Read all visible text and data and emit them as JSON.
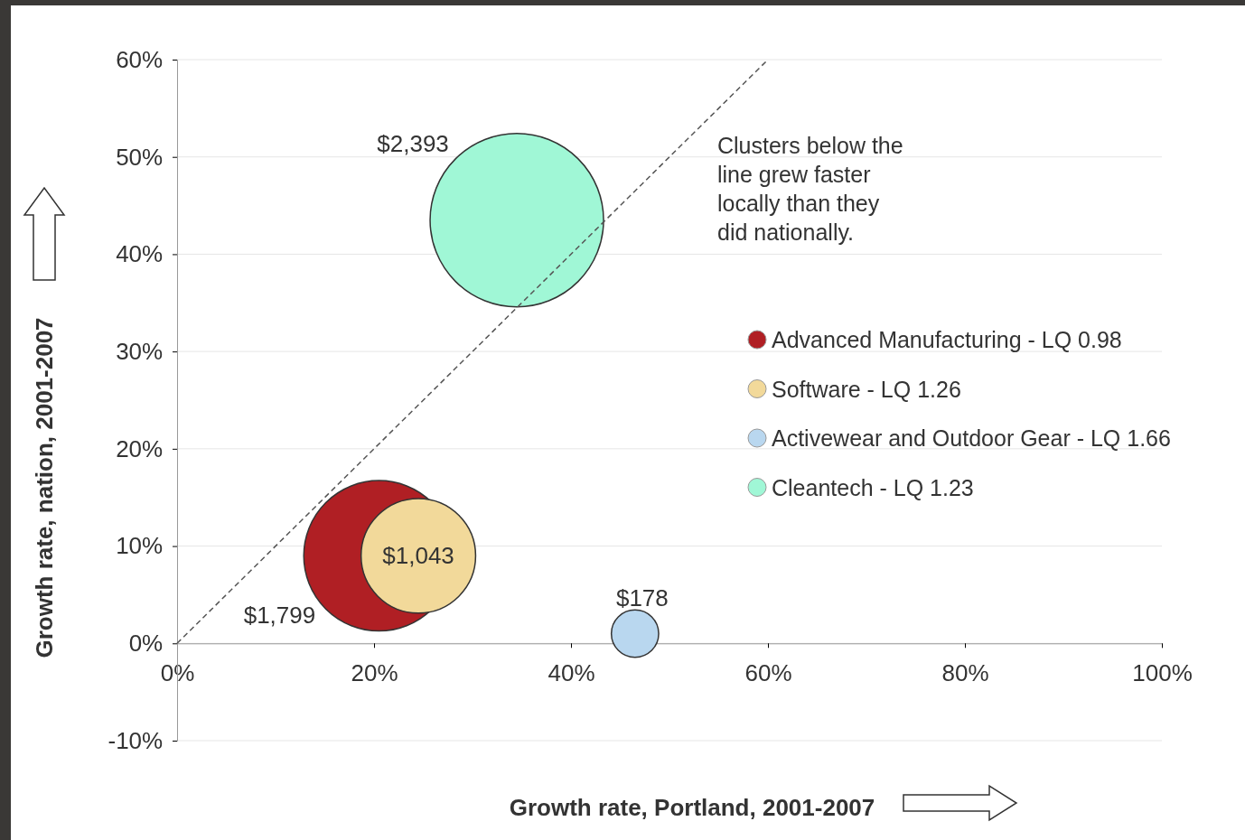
{
  "chart_data": {
    "type": "bubble",
    "xlabel": "Growth rate, Portland, 2001-2007",
    "ylabel": "Growth rate, nation, 2001-2007",
    "xlim": [
      0,
      100
    ],
    "xticks": [
      {
        "value": 0,
        "label": "0%"
      },
      {
        "value": 20,
        "label": "20%"
      },
      {
        "value": 40,
        "label": "40%"
      },
      {
        "value": 60,
        "label": "60%"
      },
      {
        "value": 80,
        "label": "80%"
      },
      {
        "value": 100,
        "label": "100%"
      }
    ],
    "ylim": [
      -10,
      60
    ],
    "yticks": [
      {
        "value": -10,
        "label": "-10%"
      },
      {
        "value": 0,
        "label": "0%"
      },
      {
        "value": 10,
        "label": "10%"
      },
      {
        "value": 20,
        "label": "20%"
      },
      {
        "value": 30,
        "label": "30%"
      },
      {
        "value": 40,
        "label": "40%"
      },
      {
        "value": 50,
        "label": "50%"
      },
      {
        "value": 60,
        "label": "60%"
      }
    ],
    "grid": "y",
    "legend": "right",
    "annotations": [
      "Clusters below the line grew faster locally than they did nationally."
    ],
    "series": [
      {
        "name": "Advanced Manufacturing - LQ 0.98",
        "color": "#b01f24",
        "x": [
          20.5
        ],
        "values": [
          9
        ],
        "sizes": [
          1799
        ],
        "value_labels": [
          "$1,799"
        ]
      },
      {
        "name": "Software - LQ 1.26",
        "color": "#f2d99a",
        "x": [
          24.5
        ],
        "values": [
          9
        ],
        "sizes": [
          1043
        ],
        "value_labels": [
          "$1,043"
        ]
      },
      {
        "name": "Activewear and Outdoor Gear - LQ 1.66",
        "color": "#b9d7ef",
        "x": [
          46.5
        ],
        "values": [
          1
        ],
        "sizes": [
          178
        ],
        "value_labels": [
          "$178"
        ]
      },
      {
        "name": "Cleantech - LQ 1.23",
        "color": "#a0f7d6",
        "x": [
          34.5
        ],
        "values": [
          43.5
        ],
        "sizes": [
          2393
        ],
        "value_labels": [
          "$2,393"
        ]
      },
      {
        "type": "line",
        "color": "#555555",
        "line_style": "dashed",
        "x": [
          0,
          60
        ],
        "values": [
          0,
          60
        ]
      }
    ]
  }
}
